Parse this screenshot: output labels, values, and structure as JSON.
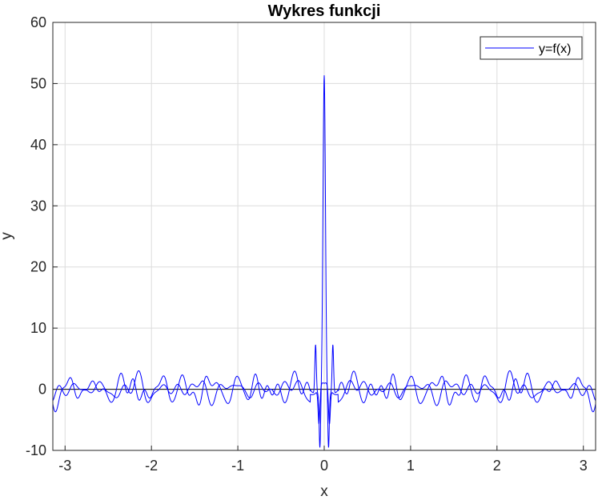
{
  "chart_data": {
    "type": "line",
    "title": "Wykres funkcji",
    "xlabel": "x",
    "ylabel": "y",
    "xlim": [
      -3.1416,
      3.1416
    ],
    "ylim": [
      -10,
      60
    ],
    "xticks": [
      -3,
      -2,
      -1,
      0,
      1,
      2,
      3
    ],
    "yticks": [
      -10,
      0,
      10,
      20,
      30,
      40,
      50,
      60
    ],
    "xtick_labels": [
      "-3",
      "-2",
      "-1",
      "0",
      "1",
      "2",
      "3"
    ],
    "ytick_labels": [
      "-10",
      "0",
      "10",
      "20",
      "30",
      "40",
      "50",
      "60"
    ],
    "grid": true,
    "legend_position": "top-right",
    "series": [
      {
        "name": "y=f(x)",
        "color": "#0000ff",
        "peak_x": 0,
        "peak_y": 52,
        "min_y": -8
      }
    ],
    "reference_line": {
      "y": 0,
      "color": "#000000"
    }
  }
}
